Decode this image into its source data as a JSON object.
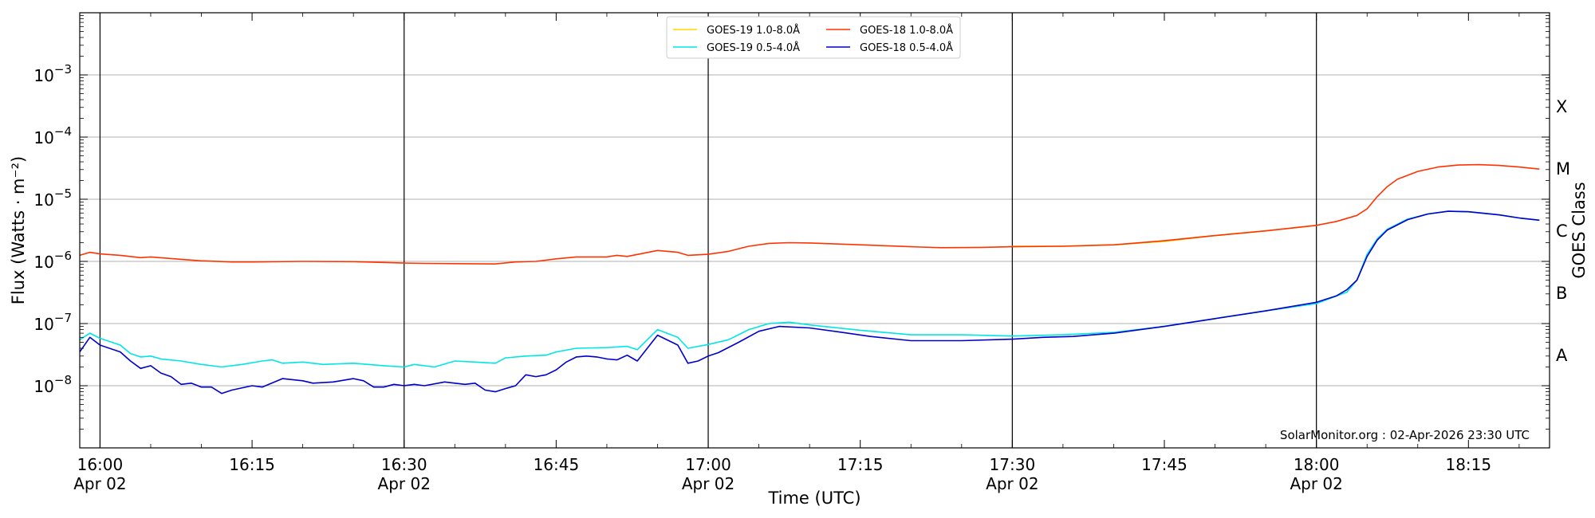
{
  "chart_data": {
    "type": "line",
    "xlabel": "Time (UTC)",
    "ylabel": "Flux (Watts · m⁻²)",
    "y2label": "GOES Class",
    "yscale": "log",
    "ylim": [
      1e-09,
      0.01
    ],
    "xlim": [
      "15:58",
      "18:23"
    ],
    "grid": "horizontal at decades; vertical at half hours",
    "legend_position": "top-center",
    "annotation": "SolarMonitor.org : 02-Apr-2026 23:30 UTC",
    "x_ticks": [
      {
        "time": "16:00",
        "label": "16:00",
        "date": "Apr 02"
      },
      {
        "time": "16:15",
        "label": "16:15",
        "date": ""
      },
      {
        "time": "16:30",
        "label": "16:30",
        "date": "Apr 02"
      },
      {
        "time": "16:45",
        "label": "16:45",
        "date": ""
      },
      {
        "time": "17:00",
        "label": "17:00",
        "date": "Apr 02"
      },
      {
        "time": "17:15",
        "label": "17:15",
        "date": ""
      },
      {
        "time": "17:30",
        "label": "17:30",
        "date": "Apr 02"
      },
      {
        "time": "17:45",
        "label": "17:45",
        "date": ""
      },
      {
        "time": "18:00",
        "label": "18:00",
        "date": "Apr 02"
      },
      {
        "time": "18:15",
        "label": "18:15",
        "date": ""
      }
    ],
    "y_ticks": [
      {
        "value": 1e-08,
        "base": "10",
        "exp": "−8"
      },
      {
        "value": 1e-07,
        "base": "10",
        "exp": "−7"
      },
      {
        "value": 1e-06,
        "base": "10",
        "exp": "−6"
      },
      {
        "value": 1e-05,
        "base": "10",
        "exp": "−5"
      },
      {
        "value": 0.0001,
        "base": "10",
        "exp": "−4"
      },
      {
        "value": 0.001,
        "base": "10",
        "exp": "−3"
      }
    ],
    "goes_classes": [
      {
        "label": "A",
        "value": 3.16e-08
      },
      {
        "label": "B",
        "value": 3.16e-07
      },
      {
        "label": "C",
        "value": 3.16e-06
      },
      {
        "label": "M",
        "value": 3.16e-05
      },
      {
        "label": "X",
        "value": 0.000316
      }
    ],
    "series": [
      {
        "name": "GOES-19 1.0-8.0Å",
        "color": "#ffd700",
        "points": [
          [
            "17:30",
            1.75e-06
          ],
          [
            "17:35",
            1.76e-06
          ],
          [
            "17:40",
            1.85e-06
          ],
          [
            "17:45",
            2.1e-06
          ],
          [
            "17:50",
            2.6e-06
          ],
          [
            "17:55",
            3.1e-06
          ],
          [
            "18:00",
            3.8e-06
          ]
        ]
      },
      {
        "name": "GOES-18 1.0-8.0Å",
        "color": "#ff3300",
        "points": [
          [
            "15:58",
            1.25e-06
          ],
          [
            "15:59",
            1.4e-06
          ],
          [
            "16:00",
            1.32e-06
          ],
          [
            "16:02",
            1.25e-06
          ],
          [
            "16:04",
            1.15e-06
          ],
          [
            "16:05",
            1.18e-06
          ],
          [
            "16:08",
            1.08e-06
          ],
          [
            "16:10",
            1.02e-06
          ],
          [
            "16:13",
            9.8e-07
          ],
          [
            "16:15",
            9.8e-07
          ],
          [
            "16:20",
            1e-06
          ],
          [
            "16:25",
            9.9e-07
          ],
          [
            "16:30",
            9.4e-07
          ],
          [
            "16:32",
            9.3e-07
          ],
          [
            "16:35",
            9.2e-07
          ],
          [
            "16:39",
            9.1e-07
          ],
          [
            "16:41",
            9.8e-07
          ],
          [
            "16:43",
            1e-06
          ],
          [
            "16:45",
            1.1e-06
          ],
          [
            "16:47",
            1.18e-06
          ],
          [
            "16:50",
            1.18e-06
          ],
          [
            "16:51",
            1.25e-06
          ],
          [
            "16:52",
            1.2e-06
          ],
          [
            "16:55",
            1.5e-06
          ],
          [
            "16:57",
            1.4e-06
          ],
          [
            "16:58",
            1.25e-06
          ],
          [
            "17:00",
            1.3e-06
          ],
          [
            "17:02",
            1.45e-06
          ],
          [
            "17:04",
            1.75e-06
          ],
          [
            "17:06",
            1.95e-06
          ],
          [
            "17:08",
            2e-06
          ],
          [
            "17:10",
            1.98e-06
          ],
          [
            "17:15",
            1.85e-06
          ],
          [
            "17:20",
            1.72e-06
          ],
          [
            "17:23",
            1.66e-06
          ],
          [
            "17:27",
            1.68e-06
          ],
          [
            "17:30",
            1.72e-06
          ],
          [
            "17:35",
            1.75e-06
          ],
          [
            "17:40",
            1.85e-06
          ],
          [
            "17:45",
            2.15e-06
          ],
          [
            "17:50",
            2.6e-06
          ],
          [
            "17:55",
            3.1e-06
          ],
          [
            "18:00",
            3.8e-06
          ],
          [
            "18:02",
            4.4e-06
          ],
          [
            "18:04",
            5.5e-06
          ],
          [
            "18:05",
            7e-06
          ],
          [
            "18:06",
            1.1e-05
          ],
          [
            "18:07",
            1.6e-05
          ],
          [
            "18:08",
            2.1e-05
          ],
          [
            "18:10",
            2.8e-05
          ],
          [
            "18:12",
            3.3e-05
          ],
          [
            "18:14",
            3.55e-05
          ],
          [
            "18:16",
            3.6e-05
          ],
          [
            "18:18",
            3.5e-05
          ],
          [
            "18:20",
            3.3e-05
          ],
          [
            "18:22",
            3.05e-05
          ]
        ]
      },
      {
        "name": "GOES-19 0.5-4.0Å",
        "color": "#00e5e5",
        "points": [
          [
            "15:58",
            5.5e-08
          ],
          [
            "15:59",
            7e-08
          ],
          [
            "16:00",
            5.8e-08
          ],
          [
            "16:02",
            4.5e-08
          ],
          [
            "16:03",
            3.3e-08
          ],
          [
            "16:04",
            2.9e-08
          ],
          [
            "16:05",
            3e-08
          ],
          [
            "16:06",
            2.7e-08
          ],
          [
            "16:08",
            2.5e-08
          ],
          [
            "16:10",
            2.2e-08
          ],
          [
            "16:12",
            2e-08
          ],
          [
            "16:14",
            2.2e-08
          ],
          [
            "16:16",
            2.5e-08
          ],
          [
            "16:17",
            2.6e-08
          ],
          [
            "16:18",
            2.3e-08
          ],
          [
            "16:20",
            2.4e-08
          ],
          [
            "16:22",
            2.2e-08
          ],
          [
            "16:25",
            2.3e-08
          ],
          [
            "16:28",
            2.1e-08
          ],
          [
            "16:30",
            2e-08
          ],
          [
            "16:31",
            2.2e-08
          ],
          [
            "16:33",
            2e-08
          ],
          [
            "16:35",
            2.5e-08
          ],
          [
            "16:37",
            2.4e-08
          ],
          [
            "16:39",
            2.3e-08
          ],
          [
            "16:40",
            2.8e-08
          ],
          [
            "16:42",
            3e-08
          ],
          [
            "16:44",
            3.1e-08
          ],
          [
            "16:45",
            3.5e-08
          ],
          [
            "16:47",
            4e-08
          ],
          [
            "16:50",
            4.1e-08
          ],
          [
            "16:52",
            4.3e-08
          ],
          [
            "16:53",
            3.8e-08
          ],
          [
            "16:55",
            8e-08
          ],
          [
            "16:57",
            6e-08
          ],
          [
            "16:58",
            4e-08
          ],
          [
            "17:00",
            4.6e-08
          ],
          [
            "17:02",
            5.5e-08
          ],
          [
            "17:04",
            8e-08
          ],
          [
            "17:06",
            1e-07
          ],
          [
            "17:08",
            1.05e-07
          ],
          [
            "17:10",
            9.5e-08
          ],
          [
            "17:15",
            7.8e-08
          ],
          [
            "17:20",
            6.6e-08
          ],
          [
            "17:25",
            6.6e-08
          ],
          [
            "17:30",
            6.3e-08
          ],
          [
            "17:35",
            6.6e-08
          ],
          [
            "17:40",
            7.2e-08
          ],
          [
            "17:45",
            9e-08
          ],
          [
            "17:50",
            1.2e-07
          ],
          [
            "17:55",
            1.6e-07
          ],
          [
            "18:00",
            2.1e-07
          ],
          [
            "18:03",
            3.2e-07
          ],
          [
            "18:04",
            5e-07
          ],
          [
            "18:05",
            1.3e-06
          ],
          [
            "18:06",
            2.3e-06
          ],
          [
            "18:07",
            3.3e-06
          ],
          [
            "18:09",
            4.8e-06
          ],
          [
            "18:11",
            5.8e-06
          ],
          [
            "18:13",
            6.4e-06
          ],
          [
            "18:15",
            6.3e-06
          ],
          [
            "18:18",
            5.6e-06
          ],
          [
            "18:20",
            5e-06
          ],
          [
            "18:22",
            4.6e-06
          ]
        ]
      },
      {
        "name": "GOES-18 0.5-4.0Å",
        "color": "#0000cc",
        "points": [
          [
            "15:58",
            3.5e-08
          ],
          [
            "15:59",
            6e-08
          ],
          [
            "16:00",
            4.5e-08
          ],
          [
            "16:02",
            3.5e-08
          ],
          [
            "16:03",
            2.5e-08
          ],
          [
            "16:04",
            1.9e-08
          ],
          [
            "16:05",
            2.1e-08
          ],
          [
            "16:06",
            1.6e-08
          ],
          [
            "16:07",
            1.4e-08
          ],
          [
            "16:08",
            1.05e-08
          ],
          [
            "16:09",
            1.1e-08
          ],
          [
            "16:10",
            9.5e-09
          ],
          [
            "16:11",
            9.5e-09
          ],
          [
            "16:12",
            7.5e-09
          ],
          [
            "16:13",
            8.5e-09
          ],
          [
            "16:15",
            1e-08
          ],
          [
            "16:16",
            9.5e-09
          ],
          [
            "16:18",
            1.3e-08
          ],
          [
            "16:20",
            1.2e-08
          ],
          [
            "16:21",
            1.1e-08
          ],
          [
            "16:23",
            1.15e-08
          ],
          [
            "16:25",
            1.3e-08
          ],
          [
            "16:26",
            1.2e-08
          ],
          [
            "16:27",
            9.5e-09
          ],
          [
            "16:28",
            9.5e-09
          ],
          [
            "16:29",
            1.05e-08
          ],
          [
            "16:30",
            1e-08
          ],
          [
            "16:31",
            1.05e-08
          ],
          [
            "16:32",
            1e-08
          ],
          [
            "16:34",
            1.15e-08
          ],
          [
            "16:35",
            1.1e-08
          ],
          [
            "16:36",
            1.05e-08
          ],
          [
            "16:37",
            1.1e-08
          ],
          [
            "16:38",
            8.5e-09
          ],
          [
            "16:39",
            8e-09
          ],
          [
            "16:40",
            9e-09
          ],
          [
            "16:41",
            1e-08
          ],
          [
            "16:42",
            1.5e-08
          ],
          [
            "16:43",
            1.4e-08
          ],
          [
            "16:44",
            1.5e-08
          ],
          [
            "16:45",
            1.8e-08
          ],
          [
            "16:46",
            2.4e-08
          ],
          [
            "16:47",
            2.9e-08
          ],
          [
            "16:48",
            3e-08
          ],
          [
            "16:49",
            2.9e-08
          ],
          [
            "16:50",
            2.7e-08
          ],
          [
            "16:51",
            2.6e-08
          ],
          [
            "16:52",
            3.1e-08
          ],
          [
            "16:53",
            2.5e-08
          ],
          [
            "16:55",
            6.5e-08
          ],
          [
            "16:57",
            4.5e-08
          ],
          [
            "16:58",
            2.3e-08
          ],
          [
            "16:59",
            2.5e-08
          ],
          [
            "17:00",
            3e-08
          ],
          [
            "17:01",
            3.4e-08
          ],
          [
            "17:03",
            5e-08
          ],
          [
            "17:05",
            7.5e-08
          ],
          [
            "17:07",
            9e-08
          ],
          [
            "17:10",
            8.5e-08
          ],
          [
            "17:13",
            7.3e-08
          ],
          [
            "17:16",
            6.2e-08
          ],
          [
            "17:20",
            5.3e-08
          ],
          [
            "17:25",
            5.3e-08
          ],
          [
            "17:30",
            5.6e-08
          ],
          [
            "17:33",
            6e-08
          ],
          [
            "17:36",
            6.2e-08
          ],
          [
            "17:40",
            7e-08
          ],
          [
            "17:45",
            9e-08
          ],
          [
            "17:50",
            1.2e-07
          ],
          [
            "17:55",
            1.6e-07
          ],
          [
            "18:00",
            2.2e-07
          ],
          [
            "18:02",
            2.8e-07
          ],
          [
            "18:03",
            3.5e-07
          ],
          [
            "18:04",
            5e-07
          ],
          [
            "18:05",
            1.2e-06
          ],
          [
            "18:06",
            2.2e-06
          ],
          [
            "18:07",
            3.2e-06
          ],
          [
            "18:09",
            4.7e-06
          ],
          [
            "18:11",
            5.8e-06
          ],
          [
            "18:13",
            6.4e-06
          ],
          [
            "18:15",
            6.3e-06
          ],
          [
            "18:18",
            5.6e-06
          ],
          [
            "18:20",
            5e-06
          ],
          [
            "18:22",
            4.6e-06
          ]
        ]
      }
    ],
    "legend_order": [
      0,
      2,
      1,
      3
    ]
  }
}
